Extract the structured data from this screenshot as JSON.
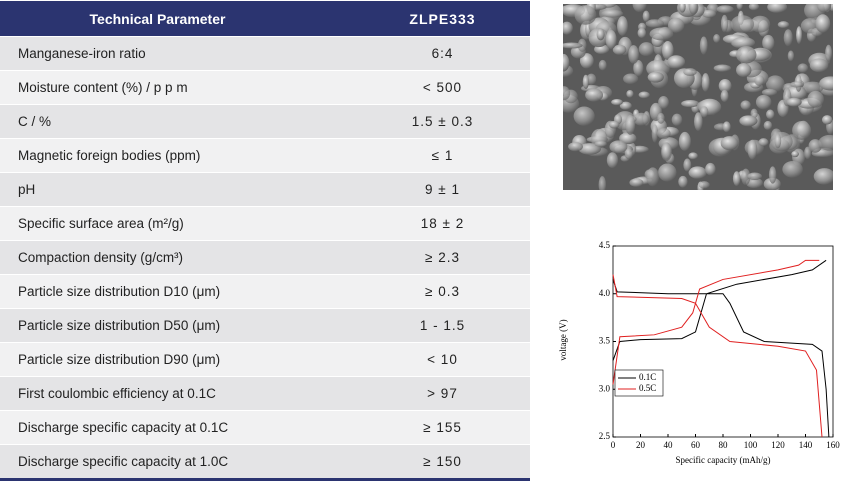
{
  "table": {
    "header": [
      "Technical Parameter",
      "ZLPE333"
    ],
    "rows": [
      [
        "Manganese-iron ratio",
        "6:4"
      ],
      [
        "Moisture content (%) / p p m",
        "< 500"
      ],
      [
        "C / %",
        "1.5 ± 0.3"
      ],
      [
        "Magnetic foreign bodies (ppm)",
        "≤ 1"
      ],
      [
        "pH",
        "9 ± 1"
      ],
      [
        "Specific surface area (m²/g)",
        "18 ± 2"
      ],
      [
        "Compaction density (g/cm³)",
        "≥ 2.3"
      ],
      [
        "Particle size distribution D10 (μm)",
        "≥ 0.3"
      ],
      [
        "Particle size distribution D50 (μm)",
        "1 - 1.5"
      ],
      [
        "Particle size distribution D90 (μm)",
        "< 10"
      ],
      [
        "First coulombic efficiency at 0.1C",
        "> 97"
      ],
      [
        "Discharge specific capacity at 0.1C",
        "≥ 155"
      ],
      [
        "Discharge specific capacity at 1.0C",
        "≥ 150"
      ]
    ]
  },
  "chart_data": {
    "type": "line",
    "x_label": "Specific capacity (mAh/g)",
    "y_label": "voltage (V)",
    "xlim": [
      0,
      160
    ],
    "xticks": [
      0,
      20,
      40,
      60,
      80,
      100,
      120,
      140,
      160
    ],
    "ylim": [
      2.5,
      4.5
    ],
    "yticks": [
      2.5,
      {
        "value": 3,
        "label": "3.0"
      },
      3.5,
      {
        "value": 4,
        "label": "4.0"
      },
      4.5
    ],
    "series": [
      {
        "name": "0.1C",
        "color": "#000000",
        "x": [
          0,
          5,
          20,
          50,
          60,
          68,
          90,
          130,
          145,
          155,
          null,
          0,
          3,
          40,
          80,
          85,
          95,
          110,
          145,
          152,
          155,
          157
        ],
        "values": [
          3.3,
          3.5,
          3.52,
          3.53,
          3.6,
          4.0,
          4.1,
          4.2,
          4.25,
          4.35,
          null,
          4.15,
          4.02,
          4.0,
          4.0,
          3.9,
          3.6,
          3.5,
          3.47,
          3.4,
          3.0,
          2.5
        ]
      },
      {
        "name": "0.5C",
        "color": "#e02020",
        "x": [
          0,
          5,
          30,
          50,
          58,
          63,
          80,
          120,
          135,
          140,
          150,
          null,
          0,
          3,
          50,
          60,
          70,
          85,
          120,
          140,
          148,
          152
        ],
        "values": [
          3.05,
          3.55,
          3.57,
          3.65,
          3.8,
          4.05,
          4.15,
          4.25,
          4.3,
          4.35,
          4.35,
          null,
          4.2,
          3.97,
          3.95,
          3.9,
          3.65,
          3.5,
          3.45,
          3.4,
          3.2,
          2.5
        ]
      }
    ]
  }
}
